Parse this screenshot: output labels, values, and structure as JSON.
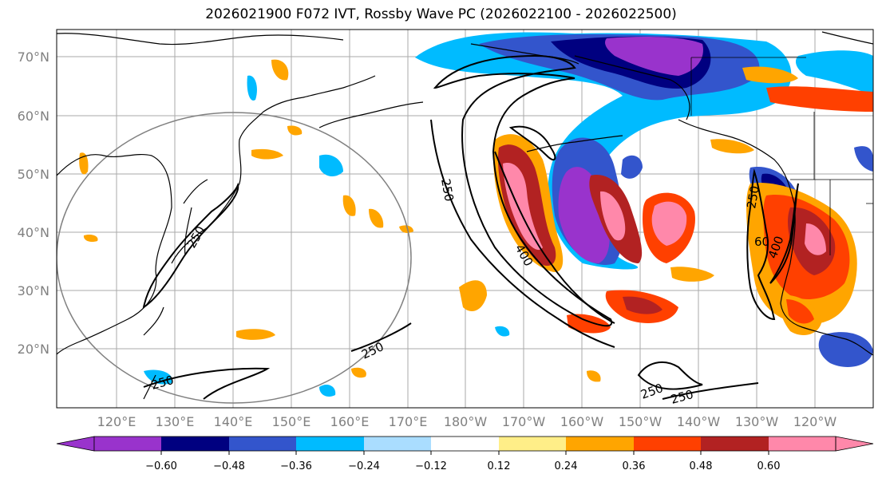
{
  "title": "2026021900 F072 IVT, Rossby Wave PC (2026022100 - 2026022500)",
  "lat_labels": [
    "70°N",
    "60°N",
    "50°N",
    "40°N",
    "30°N",
    "20°N"
  ],
  "lon_labels": [
    "120°E",
    "130°E",
    "140°E",
    "150°E",
    "160°E",
    "170°E",
    "180°W",
    "170°W",
    "160°W",
    "150°W",
    "140°W",
    "130°W",
    "120°W"
  ],
  "colorbar": {
    "colors": [
      "#9933cc",
      "#000080",
      "#3355cc",
      "#00bbff",
      "#aaddff",
      "#ffffff",
      "#ffee88",
      "#ffa500",
      "#ff4000",
      "#b22222",
      "#ff88aa"
    ],
    "tick_labels": [
      "−0.60",
      "−0.48",
      "−0.36",
      "−0.24",
      "−0.12",
      "0.12",
      "0.24",
      "0.36",
      "0.48",
      "0.60"
    ]
  },
  "contour_labels": [
    "250",
    "250",
    "250",
    "250",
    "250",
    "250",
    "400",
    "400",
    "250",
    "60"
  ]
}
